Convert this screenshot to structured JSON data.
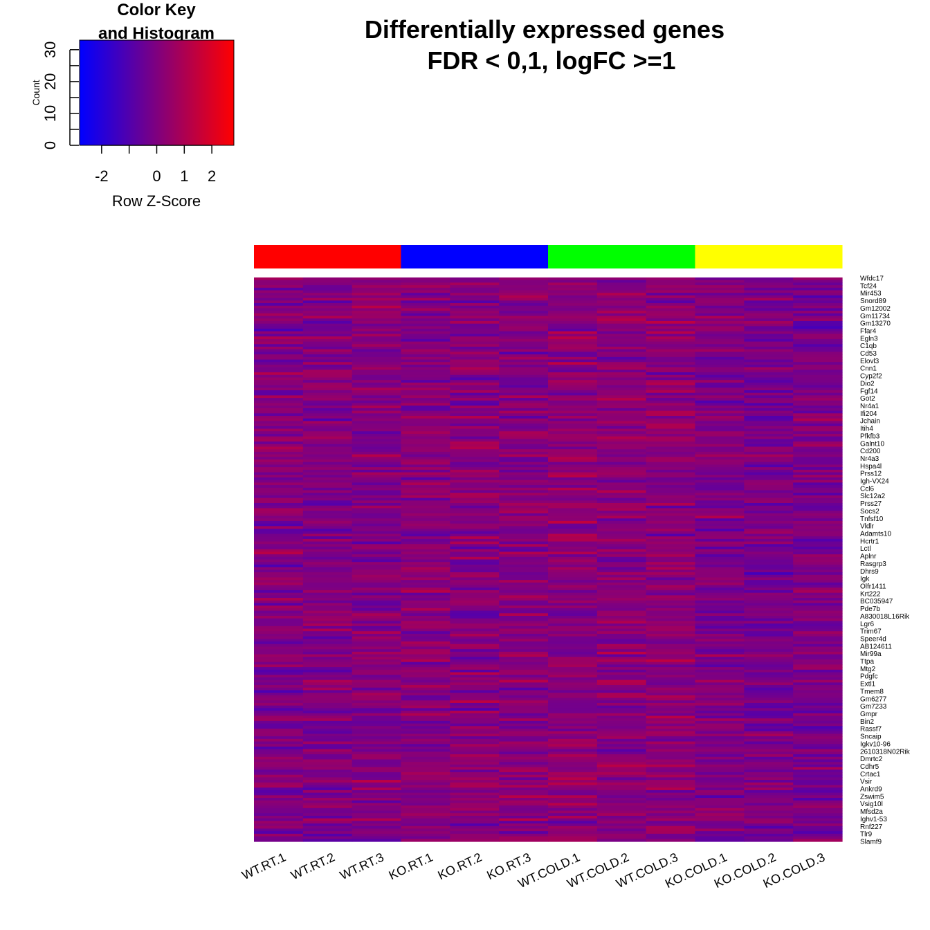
{
  "chart_data": {
    "type": "heatmap",
    "title": "Differentially expressed genes",
    "subtitle": "FDR < 0,1, logFC >=1",
    "color_key": {
      "title_line1": "Color Key",
      "title_line2": "and Histogram",
      "xlabel": "Row Z-Score",
      "ylabel": "Count",
      "x_ticks": [
        "-2",
        "",
        "0",
        "1",
        "2"
      ],
      "x_tick_values": [
        -2,
        -1,
        0,
        1,
        2
      ],
      "x_range": [
        -2.8,
        2.8
      ],
      "y_ticks": [
        "0",
        "10",
        "20",
        "30"
      ],
      "y_tick_values": [
        0,
        10,
        20,
        30
      ],
      "y_minor_ticks": [
        5,
        15,
        25
      ],
      "y_range": [
        0,
        33
      ],
      "colors": [
        "#0000ff",
        "#7f007f",
        "#ff0000"
      ]
    },
    "columns": [
      "WT.RT.1",
      "WT.RT.2",
      "WT.RT.3",
      "KO.RT.1",
      "KO.RT.2",
      "KO.RT.3",
      "WT.COLD.1",
      "WT.COLD.2",
      "WT.COLD.3",
      "KO.COLD.1",
      "KO.COLD.2",
      "KO.COLD.3"
    ],
    "column_groups": [
      {
        "color": "#ff0000",
        "columns": 3
      },
      {
        "color": "#0000ff",
        "columns": 3
      },
      {
        "color": "#00ff00",
        "columns": 3
      },
      {
        "color": "#ffff00",
        "columns": 3
      }
    ],
    "row_labels": [
      "Wfdc17",
      "Tcf24",
      "Mir453",
      "Snord89",
      "Gm12002",
      "Gm11734",
      "Gm13270",
      "Ffar4",
      "Egln3",
      "C1qb",
      "Cd53",
      "Elovl3",
      "Cnn1",
      "Cyp2f2",
      "Dio2",
      "Fgf14",
      "Got2",
      "Nr4a1",
      "Ifi204",
      "Jchain",
      "Itih4",
      "Pfkfb3",
      "Galnt10",
      "Cd200",
      "Nr4a3",
      "Hspa4l",
      "Prss12",
      "Igh-VX24",
      "Ccl6",
      "Slc12a2",
      "Prss27",
      "Socs2",
      "Tnfsf10",
      "Vldlr",
      "Adamts10",
      "Hcrtr1",
      "Lctl",
      "Aplnr",
      "Rasgrp3",
      "Dhrs9",
      "Igk",
      "Olfr1411",
      "Krt222",
      "BC035947",
      "Pde7b",
      "A830018L16Rik",
      "Lgr6",
      "Trim67",
      "Speer4d",
      "AB124611",
      "Mir99a",
      "Ttpa",
      "Mtg2",
      "Pdgfc",
      "Extl1",
      "Tmem8",
      "Gm6277",
      "Gm7233",
      "Gmpr",
      "Bin2",
      "Rassf7",
      "Sncaip",
      "Igkv10-96",
      "2610318N02Rik",
      "Dmrtc2",
      "Cdhr5",
      "Crtac1",
      "Vsir",
      "Ankrd9",
      "Zswim5",
      "Vsig10l",
      "Mfsd2a",
      "Ighv1-53",
      "Rnf227",
      "Tlr9",
      "Slamf9"
    ],
    "z_range": [
      -2.8,
      2.8
    ]
  }
}
